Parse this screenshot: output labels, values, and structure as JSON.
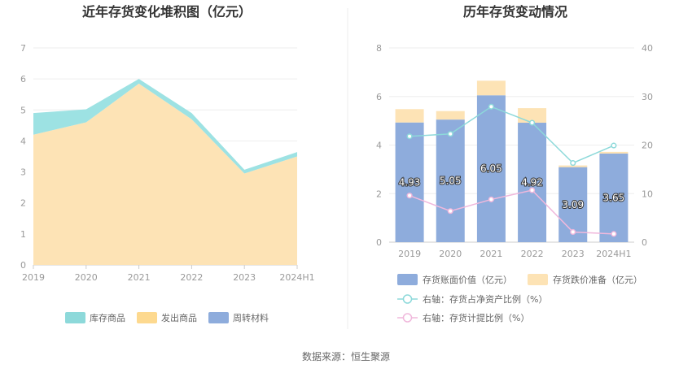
{
  "source_text": "数据来源：恒生聚源",
  "chart_data": [
    {
      "type": "area",
      "stacked": true,
      "title": "近年存货变化堆积图（亿元）",
      "categories": [
        "2019",
        "2020",
        "2021",
        "2022",
        "2023",
        "2024H1"
      ],
      "y_ticks": [
        "0",
        "1",
        "2",
        "3",
        "4",
        "5",
        "6",
        "7"
      ],
      "ylim": [
        0,
        7
      ],
      "grid": true,
      "legend_position": "bottom",
      "series": [
        {
          "name": "发出商品",
          "color": "#fde3b5",
          "values": [
            4.2,
            4.6,
            5.85,
            4.7,
            2.95,
            3.5
          ]
        },
        {
          "name": "库存商品",
          "color": "#9de2e3",
          "values": [
            0.7,
            0.42,
            0.15,
            0.2,
            0.12,
            0.14
          ]
        },
        {
          "name": "周转材料",
          "color": "#8eacdc",
          "values": [
            0.0,
            0.0,
            0.0,
            0.0,
            0.0,
            0.0
          ]
        }
      ],
      "legend": [
        {
          "name": "库存商品",
          "color": "#8dd9da"
        },
        {
          "name": "发出商品",
          "color": "#fdd98f"
        },
        {
          "name": "周转材料",
          "color": "#8eacdc"
        }
      ]
    },
    {
      "type": "bar",
      "stacked": true,
      "title": "历年存货变动情况",
      "categories": [
        "2019",
        "2020",
        "2021",
        "2022",
        "2023",
        "2024H1"
      ],
      "y_ticks_left": [
        "0",
        "2",
        "4",
        "6",
        "8"
      ],
      "y_ticks_right": [
        "0",
        "10",
        "20",
        "30",
        "40"
      ],
      "ylim_left": [
        0,
        8
      ],
      "ylim_right": [
        0,
        40
      ],
      "grid": true,
      "legend_position": "bottom",
      "series": [
        {
          "name": "存货账面价值（亿元）",
          "color": "#8eacdc",
          "axis": "left",
          "values": [
            4.93,
            5.05,
            6.05,
            4.92,
            3.09,
            3.65
          ],
          "labels": [
            "4.93",
            "5.05",
            "6.05",
            "4.92",
            "3.09",
            "3.65"
          ]
        },
        {
          "name": "存货跌价准备（亿元）",
          "color": "#fde3b5",
          "axis": "left",
          "values": [
            0.55,
            0.35,
            0.6,
            0.6,
            0.07,
            0.07
          ]
        }
      ],
      "lines": [
        {
          "name": "右轴：存货占净资产比例（%）",
          "color": "#8dd9da",
          "axis": "right",
          "values": [
            21.8,
            22.3,
            27.9,
            24.6,
            16.3,
            19.9
          ]
        },
        {
          "name": "右轴：存货计提比例（%）",
          "color": "#f0b8dc",
          "axis": "right",
          "values": [
            9.6,
            6.4,
            8.8,
            10.7,
            2.1,
            1.7
          ]
        }
      ]
    }
  ]
}
